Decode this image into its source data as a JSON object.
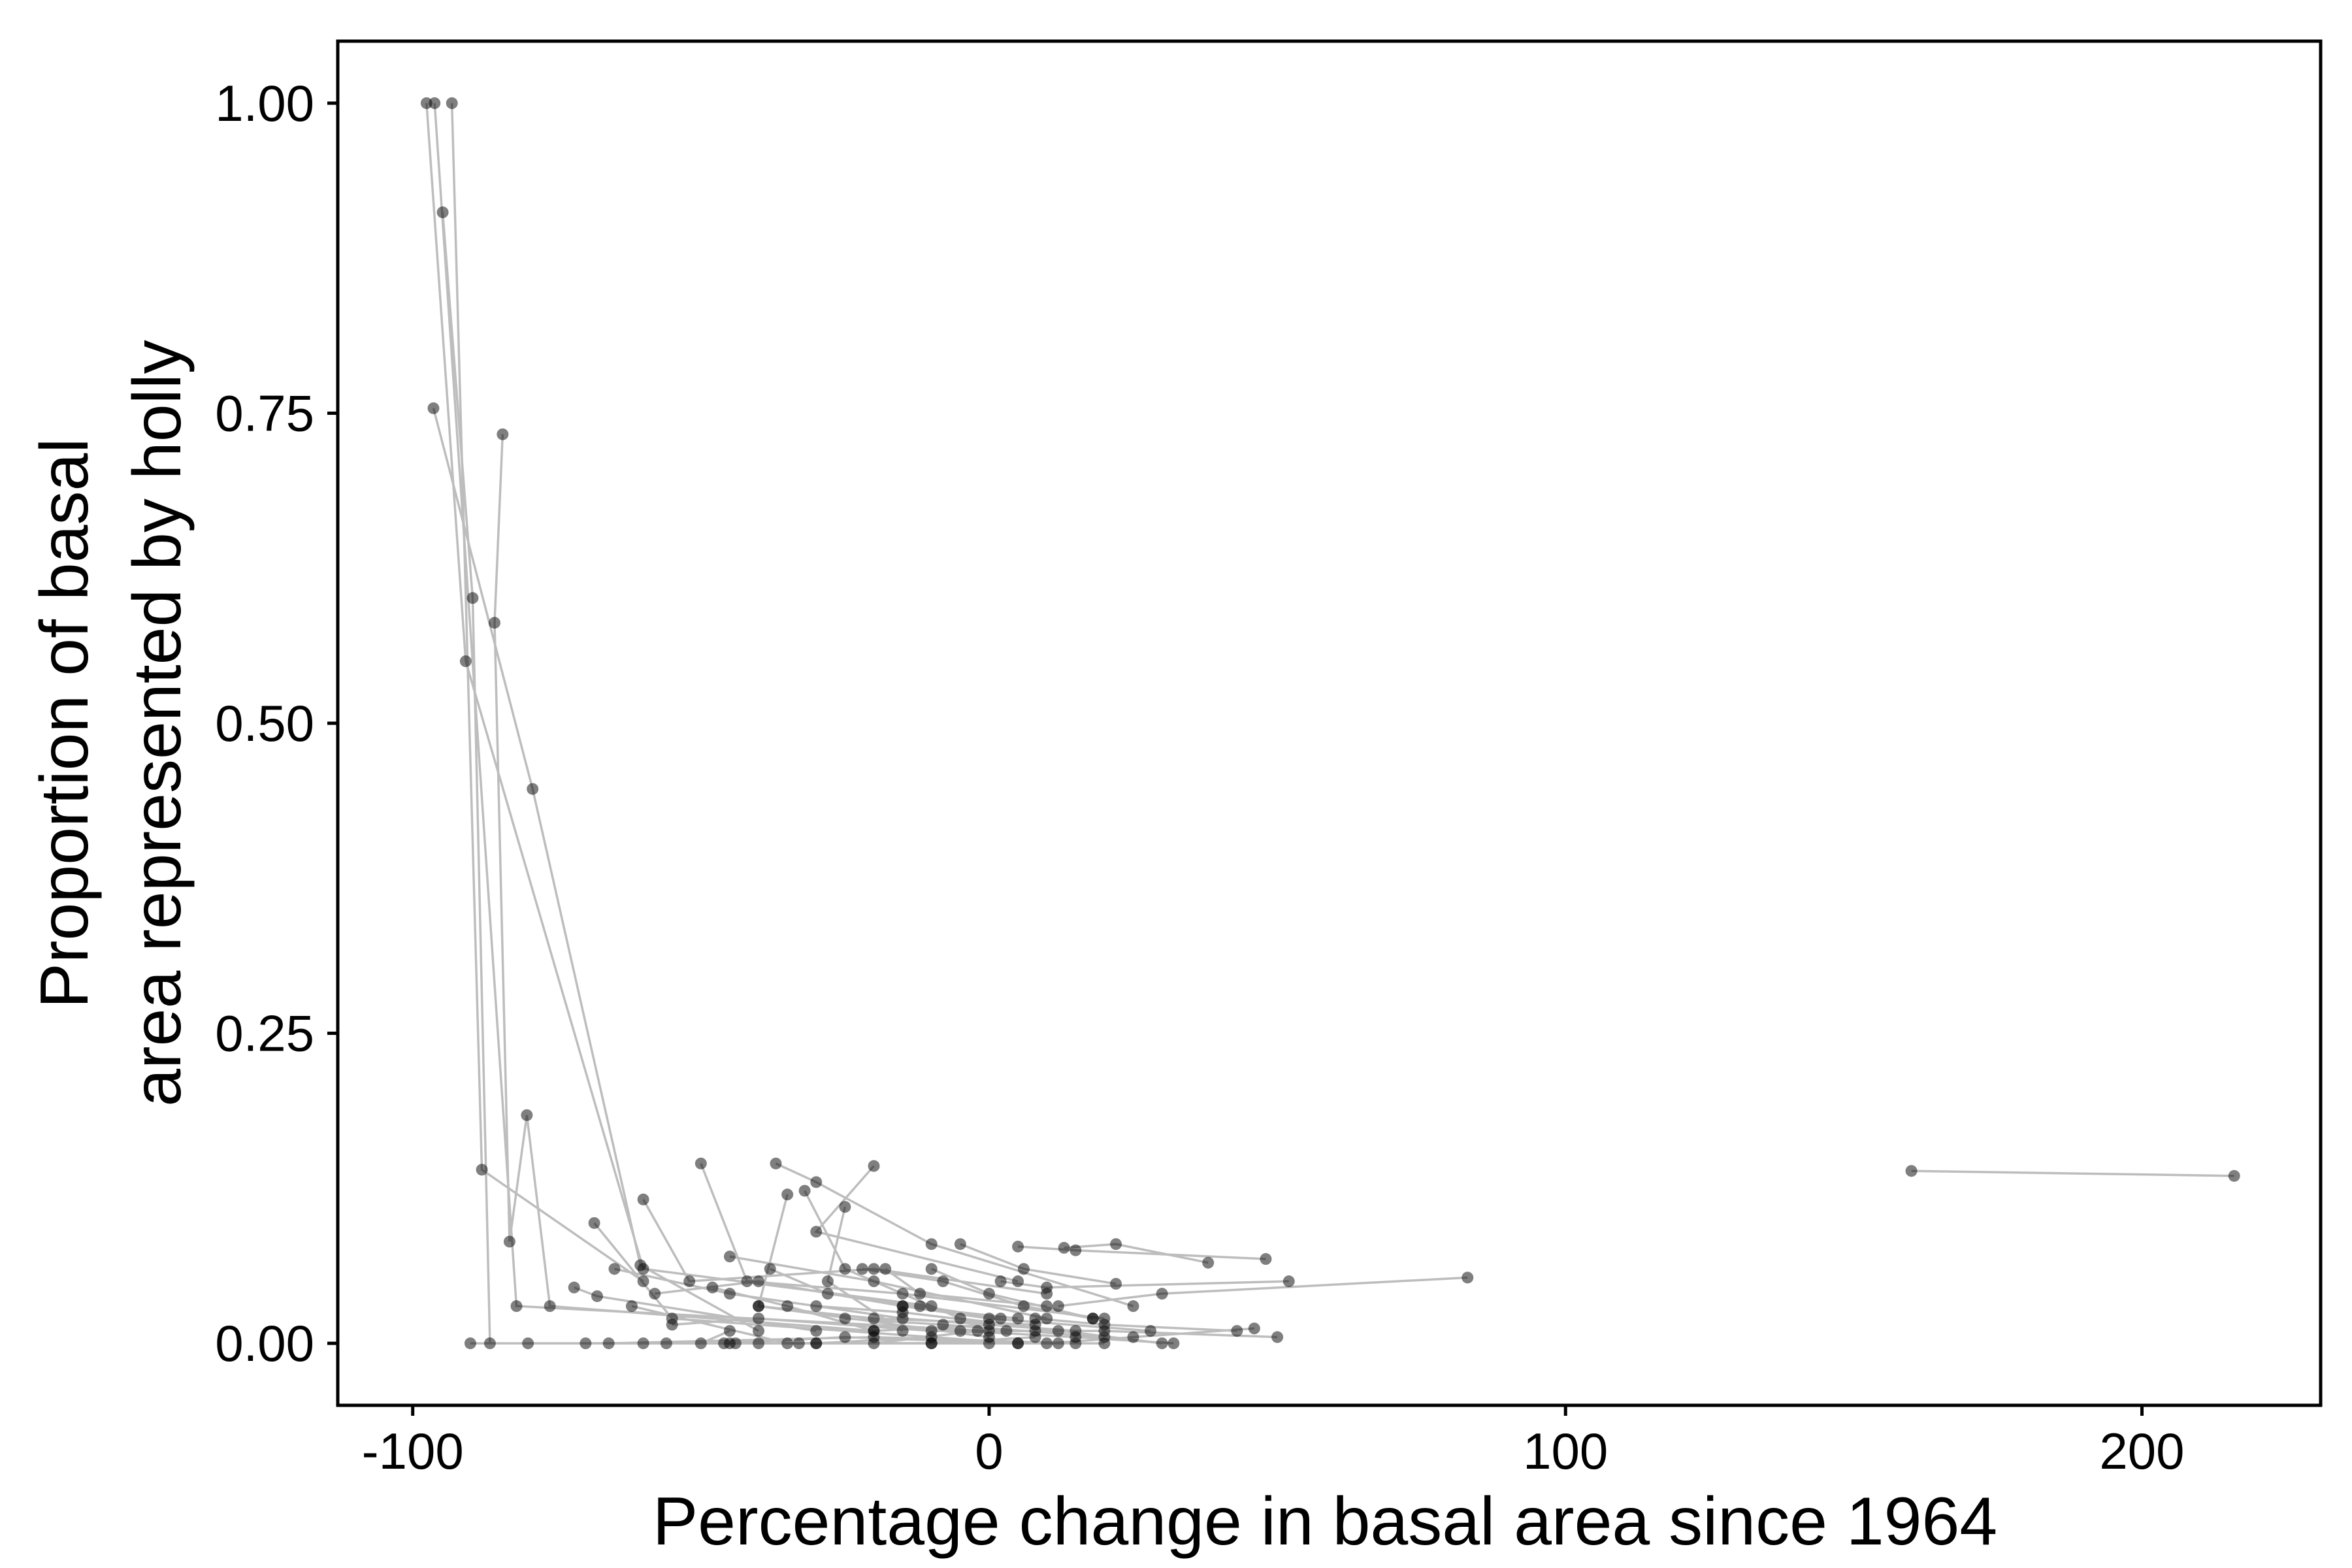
{
  "chart_data": {
    "type": "scatter",
    "title": "",
    "xlabel": "Percentage change in basal area since 1964",
    "ylabel_lines": [
      "Proportion of basal",
      "area represented by holly"
    ],
    "xlim": [
      -113,
      231
    ],
    "ylim": [
      -0.05,
      1.05
    ],
    "x_ticks": [
      -100,
      0,
      100,
      200
    ],
    "x_tick_labels": [
      "-100",
      "0",
      "100",
      "200"
    ],
    "y_ticks": [
      0,
      0.25,
      0.5,
      0.75,
      1.0
    ],
    "y_tick_labels": [
      "0.00",
      "0.25",
      "0.50",
      "0.75",
      "1.00"
    ],
    "grid": false,
    "point_color": "#000000",
    "point_opacity": 0.5,
    "line_color": "#bdbdbd",
    "trajectories": [
      [
        [
          -97.6,
          1.0
        ],
        [
          -90.8,
          0.55
        ],
        [
          -60,
          0.06
        ],
        [
          -10,
          0.03
        ]
      ],
      [
        [
          -96.2,
          1.0
        ],
        [
          -82,
          0.03
        ],
        [
          0,
          0.01
        ]
      ],
      [
        [
          -93.2,
          1.0
        ],
        [
          -88,
          0.14
        ],
        [
          -60,
          0.05
        ]
      ],
      [
        [
          -94.8,
          0.912
        ],
        [
          -89.6,
          0.601
        ],
        [
          -86.6,
          0.0
        ]
      ],
      [
        [
          -96.4,
          0.754
        ],
        [
          -79.2,
          0.447
        ],
        [
          -60.5,
          0.063
        ],
        [
          -40,
          0.01
        ]
      ],
      [
        [
          -84.4,
          0.733
        ],
        [
          -85.8,
          0.581
        ],
        [
          -83.2,
          0.082
        ],
        [
          -80.2,
          0.184
        ],
        [
          -76.2,
          0.03
        ],
        [
          -20,
          0.01
        ]
      ],
      [
        [
          -60,
          0.116
        ],
        [
          -52,
          0.05
        ],
        [
          -20,
          0.06
        ],
        [
          10,
          0.04
        ]
      ],
      [
        [
          -68.5,
          0.097
        ],
        [
          -55,
          0.02
        ],
        [
          5,
          0.0
        ]
      ],
      [
        [
          -72,
          0.045
        ],
        [
          -68,
          0.038
        ],
        [
          -30,
          0.01
        ]
      ],
      [
        [
          -50,
          0.145
        ],
        [
          -42,
          0.05
        ],
        [
          -15,
          0.04
        ],
        [
          20,
          0.02
        ]
      ],
      [
        [
          -37,
          0.145
        ],
        [
          -30,
          0.13
        ],
        [
          -10,
          0.08
        ],
        [
          25,
          0.03
        ]
      ],
      [
        [
          -35,
          0.12
        ],
        [
          -40,
          0.03
        ],
        [
          0,
          0.005
        ]
      ],
      [
        [
          -32,
          0.123
        ],
        [
          -25,
          0.06
        ],
        [
          -5,
          0.02
        ],
        [
          30,
          0.0
        ]
      ],
      [
        [
          -25,
          0.11
        ],
        [
          -28,
          0.05
        ],
        [
          -15,
          0.01
        ]
      ],
      [
        [
          -20,
          0.143
        ],
        [
          -30,
          0.09
        ],
        [
          5,
          0.05
        ]
      ],
      [
        [
          -65,
          0.06
        ],
        [
          -45,
          0.04
        ],
        [
          -15,
          0.02
        ],
        [
          15,
          0.01
        ]
      ],
      [
        [
          -62,
          0.03
        ],
        [
          -35,
          0.0
        ],
        [
          -10,
          0.0
        ]
      ],
      [
        [
          -45,
          0.07
        ],
        [
          -20,
          0.05
        ],
        [
          10,
          0.02
        ]
      ],
      [
        [
          -55,
          0.015
        ],
        [
          -40,
          0.02
        ],
        [
          -10,
          0.01
        ],
        [
          8,
          0.01
        ]
      ],
      [
        [
          -56,
          0.0
        ],
        [
          -50,
          0.0
        ],
        [
          -45,
          0.01
        ]
      ],
      [
        [
          -5,
          0.08
        ],
        [
          6,
          0.06
        ],
        [
          22,
          0.048
        ]
      ],
      [
        [
          5,
          0.078
        ],
        [
          15,
          0.075
        ],
        [
          48,
          0.068
        ]
      ],
      [
        [
          -10,
          0.06
        ],
        [
          0,
          0.04
        ],
        [
          18,
          0.02
        ]
      ],
      [
        [
          13,
          0.077
        ],
        [
          22,
          0.08
        ],
        [
          38,
          0.065
        ]
      ],
      [
        [
          -18,
          0.06
        ],
        [
          -12,
          0.04
        ],
        [
          10,
          0.03
        ]
      ],
      [
        [
          -15,
          0.03
        ],
        [
          0,
          0.02
        ],
        [
          28,
          0.01
        ]
      ],
      [
        [
          -25,
          0.02
        ],
        [
          -8,
          0.015
        ],
        [
          20,
          0.005
        ]
      ],
      [
        [
          -30,
          0.03
        ],
        [
          -15,
          0.025
        ],
        [
          12,
          0.01
        ]
      ],
      [
        [
          -40,
          0.03
        ],
        [
          -20,
          0.02
        ],
        [
          8,
          0.015
        ]
      ],
      [
        [
          2,
          0.05
        ],
        [
          10,
          0.045
        ],
        [
          52,
          0.05
        ]
      ],
      [
        [
          12,
          0.03
        ],
        [
          30,
          0.04
        ],
        [
          83,
          0.053
        ]
      ],
      [
        [
          8,
          0.02
        ],
        [
          20,
          0.015
        ],
        [
          43,
          0.01
        ]
      ],
      [
        [
          3,
          0.01
        ],
        [
          20,
          0.01
        ],
        [
          50,
          0.005
        ]
      ],
      [
        [
          -5,
          0.01
        ],
        [
          15,
          0.005
        ],
        [
          32,
          0.0
        ]
      ],
      [
        [
          10,
          0.0
        ],
        [
          25,
          0.005
        ],
        [
          46,
          0.012
        ]
      ],
      [
        [
          -60,
          0.0
        ],
        [
          -30,
          0.0
        ],
        [
          -10,
          0.005
        ]
      ],
      [
        [
          -90,
          0.0
        ],
        [
          -45,
          0.0
        ],
        [
          0,
          0.0
        ]
      ],
      [
        [
          -80,
          0.0
        ],
        [
          -40,
          0.0
        ],
        [
          12,
          0.0
        ]
      ],
      [
        [
          -70,
          0.0
        ],
        [
          -30,
          0.0
        ],
        [
          20,
          0.0
        ]
      ],
      [
        [
          -66,
          0.0
        ],
        [
          -20,
          0.005
        ],
        [
          15,
          0.0
        ]
      ],
      [
        [
          -46,
          0.0
        ],
        [
          -25,
          0.005
        ],
        [
          5,
          0.0
        ]
      ],
      [
        [
          -33,
          0.0
        ],
        [
          -10,
          0.0
        ],
        [
          8,
          0.005
        ]
      ],
      [
        [
          -44,
          0.0
        ],
        [
          -20,
          0.0
        ],
        [
          -2,
          0.01
        ]
      ],
      [
        [
          -58,
          0.04
        ],
        [
          -40,
          0.05
        ],
        [
          -15,
          0.03
        ],
        [
          5,
          0.02
        ]
      ],
      [
        [
          -48,
          0.045
        ],
        [
          -35,
          0.03
        ],
        [
          -20,
          0.01
        ],
        [
          0,
          0.015
        ]
      ],
      [
        [
          -38,
          0.06
        ],
        [
          -28,
          0.04
        ],
        [
          -12,
          0.03
        ],
        [
          2,
          0.02
        ]
      ],
      [
        [
          -22,
          0.06
        ],
        [
          -8,
          0.05
        ],
        [
          6,
          0.03
        ],
        [
          18,
          0.02
        ]
      ],
      [
        [
          160,
          0.139
        ],
        [
          216,
          0.135
        ]
      ]
    ]
  }
}
